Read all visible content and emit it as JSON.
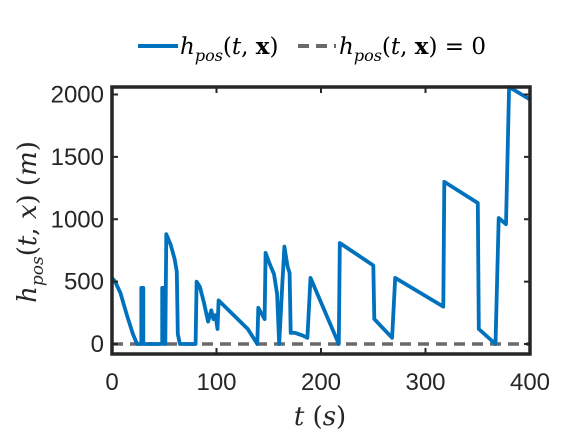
{
  "chart_data": {
    "type": "line",
    "title": "",
    "xlabel": "t (s)",
    "ylabel": "h_pos(t, x) (m)",
    "xlim": [
      0,
      400
    ],
    "ylim": [
      -80,
      2060
    ],
    "grid": false,
    "legend_position": "top-center",
    "x_ticks": [
      "0",
      "100",
      "200",
      "300",
      "400"
    ],
    "y_ticks": [
      "0",
      "500",
      "1000",
      "1500",
      "2000"
    ],
    "colors": {
      "series": "#0072BD",
      "zero": "#6a6a6a",
      "axes": "#262626"
    },
    "series": [
      {
        "name": "h_pos(t, x)",
        "style": "solid",
        "points": [
          [
            0,
            530
          ],
          [
            3,
            500
          ],
          [
            8,
            410
          ],
          [
            14,
            240
          ],
          [
            20,
            80
          ],
          [
            24,
            0
          ],
          [
            28,
            0
          ],
          [
            28,
            450
          ],
          [
            30,
            450
          ],
          [
            30,
            0
          ],
          [
            48,
            0
          ],
          [
            48,
            450
          ],
          [
            50,
            450
          ],
          [
            50,
            0
          ],
          [
            51,
            0
          ],
          [
            52,
            880
          ],
          [
            56,
            800
          ],
          [
            60,
            680
          ],
          [
            62,
            580
          ],
          [
            63,
            80
          ],
          [
            65,
            0
          ],
          [
            80,
            0
          ],
          [
            81,
            500
          ],
          [
            84,
            460
          ],
          [
            88,
            330
          ],
          [
            92,
            180
          ],
          [
            95,
            270
          ],
          [
            97,
            200
          ],
          [
            99,
            230
          ],
          [
            101,
            120
          ],
          [
            102,
            350
          ],
          [
            130,
            120
          ],
          [
            139,
            0
          ],
          [
            140,
            290
          ],
          [
            144,
            230
          ],
          [
            146,
            200
          ],
          [
            147,
            730
          ],
          [
            150,
            660
          ],
          [
            155,
            560
          ],
          [
            158,
            400
          ],
          [
            160,
            0
          ],
          [
            163,
            480
          ],
          [
            165,
            780
          ],
          [
            168,
            620
          ],
          [
            170,
            570
          ],
          [
            171,
            90
          ],
          [
            175,
            90
          ],
          [
            182,
            70
          ],
          [
            187,
            50
          ],
          [
            190,
            530
          ],
          [
            217,
            0
          ],
          [
            218,
            810
          ],
          [
            250,
            630
          ],
          [
            251,
            200
          ],
          [
            268,
            50
          ],
          [
            271,
            530
          ],
          [
            317,
            300
          ],
          [
            318,
            1300
          ],
          [
            350,
            1130
          ],
          [
            351,
            120
          ],
          [
            367,
            0
          ],
          [
            370,
            1010
          ],
          [
            377,
            960
          ],
          [
            380,
            2060
          ],
          [
            400,
            1960
          ]
        ]
      },
      {
        "name": "h_pos(t, x) = 0",
        "style": "dashed",
        "points": [
          [
            0,
            0
          ],
          [
            400,
            0
          ]
        ]
      }
    ]
  }
}
